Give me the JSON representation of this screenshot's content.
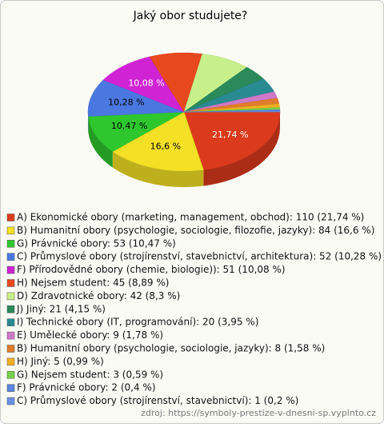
{
  "chart_data": {
    "type": "pie3d",
    "title": "Jaký obor studujete?",
    "categories": [
      "A) Ekonomické obory (marketing, management, obchod): 110 (21,74 %)",
      "B) Humanitní obory (psychologie, sociologie, filozofie, jazyky): 84 (16,6 %)",
      "G) Právnické obory: 53 (10,47 %)",
      "C) Průmyslové obory (strojírenství, stavebnictví, architektura): 52 (10,28 %)",
      "F) Přírodovědné obory (chemie, biologie)): 51 (10,08 %)",
      "H) Nejsem student: 45 (8,89 %)",
      "D) Zdravotnické obory: 42 (8,3 %)",
      "J) Jiný: 21 (4,15 %)",
      "I) Technické obory (IT, programování): 20 (3,95 %)",
      "E) Umělecké obory: 9 (1,78 %)",
      "B) Humanitní obory (psychologie, sociologie, jazyky): 8 (1,58 %)",
      "H) Jiný: 5 (0,99 %)",
      "G) Nejsem student: 3 (0,59 %)",
      "F) Právnické obory: 2 (0,4 %)",
      "C) Průmyslové obory (strojírenství, stavebnictví): 1 (0,2 %)"
    ],
    "values": [
      21.74,
      16.6,
      10.47,
      10.28,
      10.08,
      8.89,
      8.3,
      4.15,
      3.95,
      1.78,
      1.58,
      0.99,
      0.59,
      0.4,
      0.2
    ],
    "value_labels": [
      "21,74 %",
      "16,6 %",
      "10,47 %",
      "10,28 %",
      "10,08 %",
      null,
      null,
      null,
      null,
      null,
      null,
      null,
      null,
      null,
      null
    ],
    "colors": [
      "#dc3a1c",
      "#f4e024",
      "#2ec82e",
      "#4a78e0",
      "#d024d4",
      "#e8481e",
      "#c8f08a",
      "#2a8a5a",
      "#2a8a92",
      "#d078c8",
      "#e07c2c",
      "#f0b020",
      "#78d048",
      "#5a84e0",
      "#6a90e4"
    ],
    "source": "zdroj: https://symboly-prestize-v-dnesni-sp.vyplnto.cz"
  }
}
